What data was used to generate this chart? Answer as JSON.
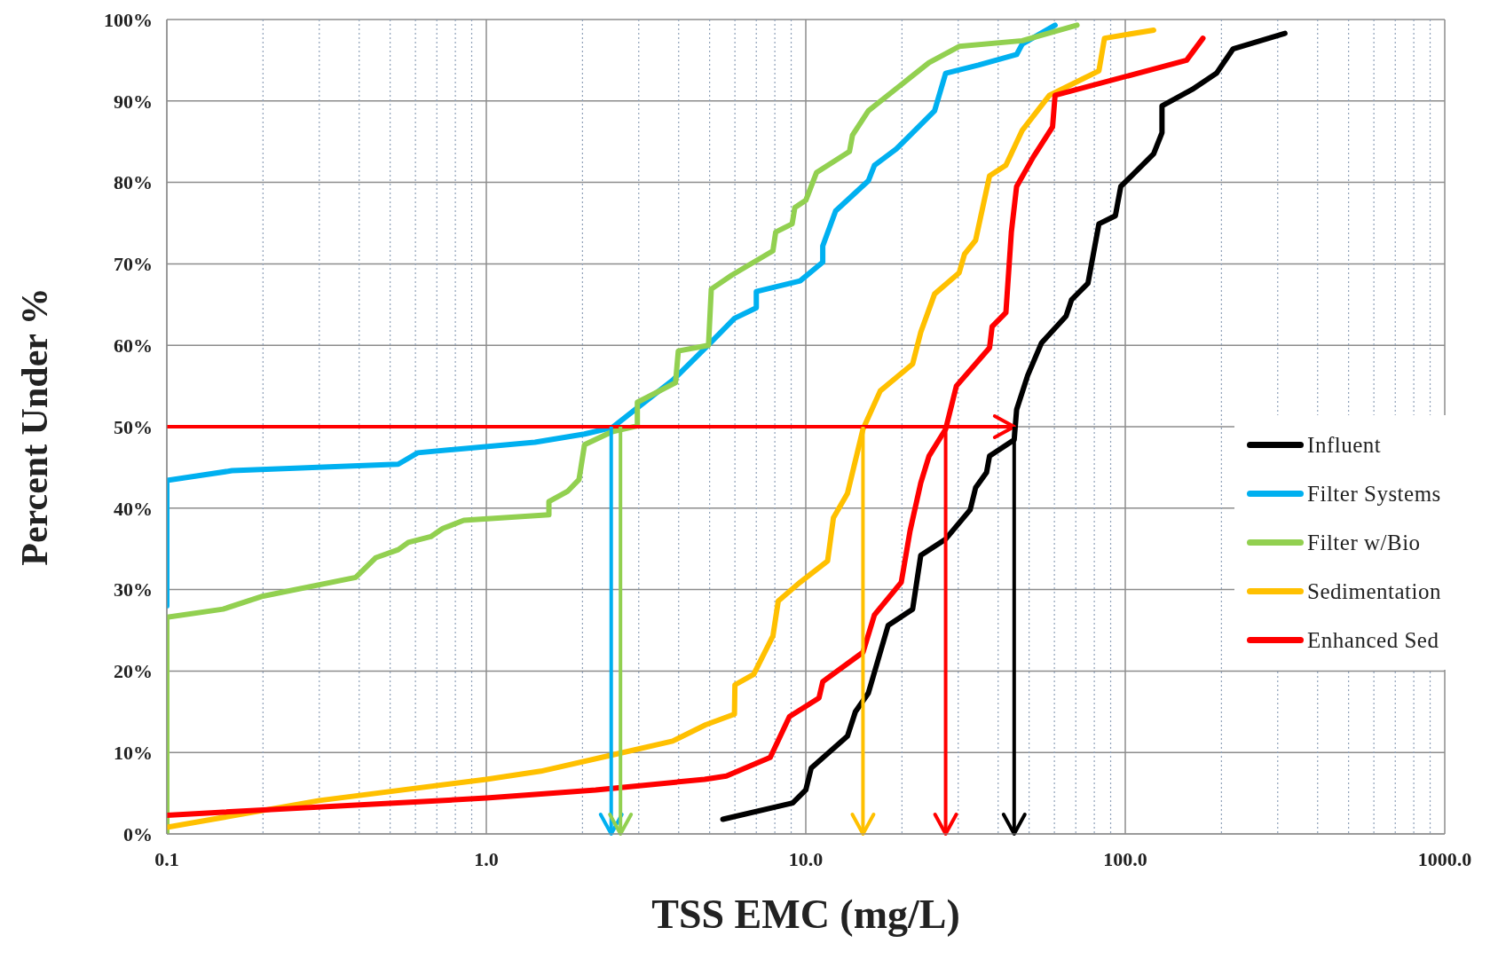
{
  "chart_data": {
    "type": "line",
    "xlabel": "TSS EMC (mg/L)",
    "ylabel": "Percent Under %",
    "log": "x",
    "grid": true,
    "legend": "right",
    "marker": "none",
    "line_style": "solid",
    "xlim": [
      0.1,
      1000
    ],
    "xticks": [
      {
        "value": 0.1,
        "label": "0.1"
      },
      {
        "value": 0.2,
        "label": null
      },
      {
        "value": 0.3,
        "label": null
      },
      {
        "value": 0.4,
        "label": null
      },
      {
        "value": 0.5,
        "label": null
      },
      {
        "value": 0.6,
        "label": null
      },
      {
        "value": 0.7,
        "label": null
      },
      {
        "value": 0.8,
        "label": null
      },
      {
        "value": 0.9,
        "label": null
      },
      {
        "value": 1,
        "label": "1.0"
      },
      {
        "value": 2,
        "label": null
      },
      {
        "value": 3,
        "label": null
      },
      {
        "value": 4,
        "label": null
      },
      {
        "value": 5,
        "label": null
      },
      {
        "value": 6,
        "label": null
      },
      {
        "value": 7,
        "label": null
      },
      {
        "value": 8,
        "label": null
      },
      {
        "value": 9,
        "label": null
      },
      {
        "value": 10,
        "label": "10.0"
      },
      {
        "value": 20,
        "label": null
      },
      {
        "value": 30,
        "label": null
      },
      {
        "value": 40,
        "label": null
      },
      {
        "value": 50,
        "label": null
      },
      {
        "value": 60,
        "label": null
      },
      {
        "value": 70,
        "label": null
      },
      {
        "value": 80,
        "label": null
      },
      {
        "value": 90,
        "label": null
      },
      {
        "value": 100,
        "label": "100.0"
      },
      {
        "value": 200,
        "label": null
      },
      {
        "value": 300,
        "label": null
      },
      {
        "value": 400,
        "label": null
      },
      {
        "value": 500,
        "label": null
      },
      {
        "value": 600,
        "label": null
      },
      {
        "value": 700,
        "label": null
      },
      {
        "value": 800,
        "label": null
      },
      {
        "value": 900,
        "label": null
      },
      {
        "value": 1000,
        "label": "1000.0"
      }
    ],
    "ylim": [
      0,
      100
    ],
    "yticks": [
      {
        "value": 0,
        "label": "0%"
      },
      {
        "value": 10,
        "label": "10%"
      },
      {
        "value": 20,
        "label": "20%"
      },
      {
        "value": 30,
        "label": "30%"
      },
      {
        "value": 40,
        "label": "40%"
      },
      {
        "value": 50,
        "label": "50%"
      },
      {
        "value": 60,
        "label": "60%"
      },
      {
        "value": 70,
        "label": "70%"
      },
      {
        "value": 80,
        "label": "80%"
      },
      {
        "value": 90,
        "label": "90%"
      },
      {
        "value": 100,
        "label": "100%"
      }
    ],
    "series": [
      {
        "name": "Influent",
        "color": "#000000",
        "x": [
          5.5,
          9.1,
          10,
          10.4,
          13.5,
          14.3,
          15.7,
          18.1,
          21.6,
          22.9,
          27.4,
          32.7,
          34,
          36.8,
          37.6,
          44.9,
          45.7,
          49.5,
          54.7,
          65.3,
          67.9,
          76.4,
          82.7,
          93.1,
          96.8,
          122.7,
          130.3,
          130.3,
          161.8,
          193,
          217.6,
          316
        ],
        "values": [
          1.8,
          3.8,
          5.4,
          8.1,
          12,
          15,
          17.3,
          25.6,
          27.6,
          34.2,
          36.2,
          39.8,
          42.5,
          44.4,
          46.4,
          48.4,
          52.1,
          56.3,
          60.3,
          63.6,
          65.6,
          67.6,
          74.9,
          75.9,
          79.5,
          83.5,
          86.1,
          89.4,
          91.4,
          93.4,
          96.4,
          98.3
        ]
      },
      {
        "name": "Filter Systems",
        "color": "#00b0f0",
        "x": [
          0.1,
          0.1,
          0.16,
          0.53,
          0.61,
          1.42,
          2.03,
          2.48,
          2.9,
          3.83,
          4.86,
          5.98,
          7,
          7,
          9.6,
          11.3,
          11.3,
          12.4,
          15.7,
          16.4,
          19.2,
          25.3,
          27.4,
          34.7,
          45.7,
          47.6,
          60.3
        ],
        "values": [
          28,
          43.4,
          44.6,
          45.4,
          46.8,
          48.1,
          49.1,
          49.9,
          52,
          55.7,
          59.7,
          63.3,
          64.6,
          66.6,
          67.9,
          70.2,
          72.2,
          76.5,
          80.2,
          82.1,
          84.1,
          88.8,
          93.4,
          94.4,
          95.7,
          97,
          99.3
        ]
      },
      {
        "name": "Filter w/Bio",
        "color": "#92d050",
        "x": [
          0.1,
          0.1,
          0.15,
          0.2,
          0.39,
          0.45,
          0.53,
          0.57,
          0.67,
          0.73,
          0.85,
          1.57,
          1.57,
          1.8,
          1.95,
          2.03,
          2.48,
          2.97,
          2.97,
          3.91,
          3.99,
          4.96,
          5.06,
          5.86,
          7.89,
          8.05,
          9.06,
          9.24,
          10,
          10.8,
          13.7,
          14,
          15.7,
          24.3,
          30.2,
          47.6,
          70.6
        ],
        "values": [
          0,
          26.6,
          27.6,
          29.2,
          31.5,
          33.9,
          34.9,
          35.8,
          36.5,
          37.5,
          38.5,
          39.2,
          40.8,
          42.1,
          43.5,
          47.8,
          49.4,
          50.1,
          53,
          55.4,
          59.3,
          60,
          66.9,
          68.6,
          71.6,
          73.9,
          74.9,
          76.9,
          77.8,
          81.2,
          83.8,
          85.8,
          88.8,
          94.7,
          96.7,
          97.4,
          99.3
        ]
      },
      {
        "name": "Sedimentation",
        "color": "#ffc000",
        "x": [
          0.1,
          0.3,
          1,
          1.48,
          2.48,
          3.83,
          4.86,
          5.98,
          6,
          6.87,
          7.89,
          8.2,
          9.6,
          11.7,
          12.2,
          13.5,
          15.1,
          17.1,
          21.6,
          22.9,
          25.3,
          30.2,
          31.4,
          34,
          37.6,
          42.3,
          47.6,
          57.9,
          73.5,
          82.7,
          86.1,
          122.7
        ],
        "values": [
          0.8,
          4.1,
          6.7,
          7.7,
          9.7,
          11.4,
          13.4,
          14.7,
          18.3,
          19.6,
          24.3,
          28.6,
          30.9,
          33.5,
          38.8,
          41.8,
          49.7,
          54.4,
          57.7,
          61.6,
          66.3,
          68.9,
          71.2,
          72.9,
          80.8,
          82.1,
          86.4,
          90.7,
          92.7,
          93.7,
          97.7,
          98.7
        ]
      },
      {
        "name": "Enhanced Sed",
        "color": "#ff0000",
        "x": [
          0.1,
          1,
          2.2,
          4.82,
          5.64,
          7.74,
          8.89,
          11,
          11.3,
          15.1,
          16.4,
          19.9,
          21.2,
          22.9,
          24.3,
          27.4,
          29.6,
          37.6,
          38.3,
          42.3,
          44,
          45.7,
          51.5,
          59.2,
          60.3,
          155.6,
          175
        ],
        "values": [
          2.3,
          4.4,
          5.4,
          6.7,
          7.1,
          9.4,
          14.4,
          16.7,
          18.7,
          22.3,
          26.9,
          30.9,
          37.2,
          43.1,
          46.4,
          49.7,
          55,
          59.7,
          62.3,
          64,
          73.9,
          79.5,
          83.1,
          86.8,
          90.7,
          95,
          97.7
        ]
      }
    ],
    "ref_lines": [
      {
        "axis": "y",
        "value": 50,
        "color": "#ff0000"
      },
      {
        "axis": "x",
        "value": 2.46,
        "color": "#00b0f0"
      },
      {
        "axis": "x",
        "value": 2.63,
        "color": "#92d050"
      },
      {
        "axis": "x",
        "value": 15.1,
        "color": "#ffc000"
      },
      {
        "axis": "x",
        "value": 27.4,
        "color": "#ff0000"
      },
      {
        "axis": "x",
        "value": 44.9,
        "color": "#000000"
      }
    ]
  }
}
